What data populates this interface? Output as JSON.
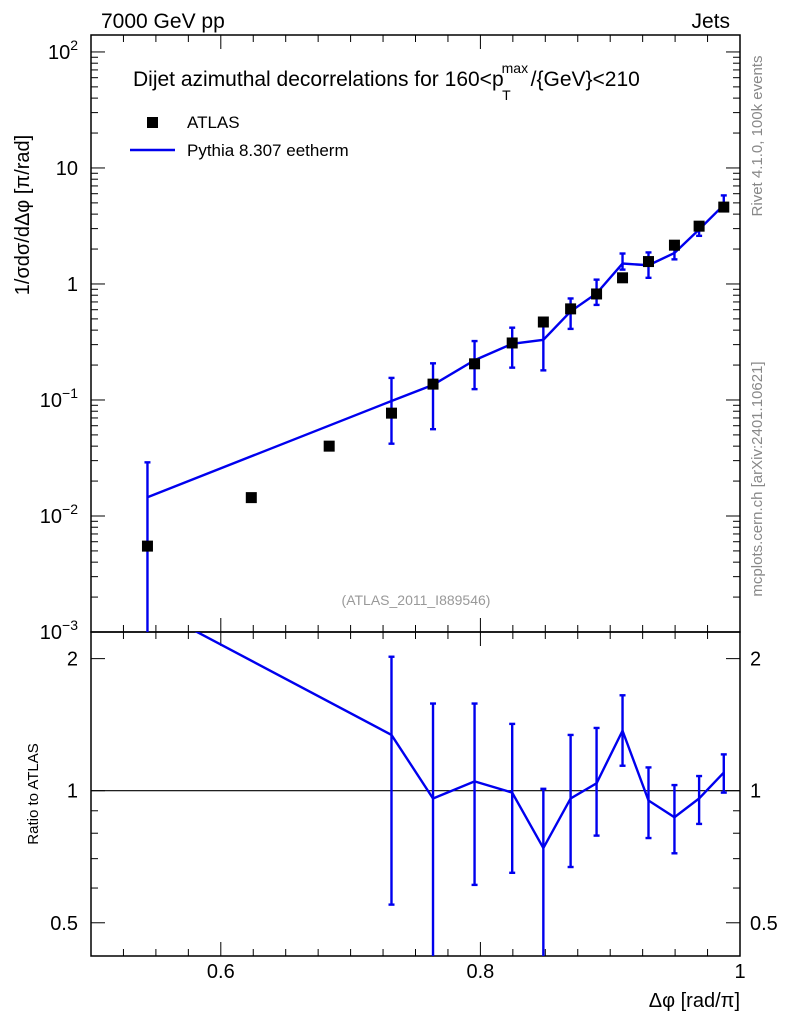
{
  "header": {
    "left": "7000 GeV pp",
    "right": "Jets"
  },
  "side_labels": {
    "rivet": "Rivet 4.1.0,  100k events",
    "mcplots": "mcplots.cern.ch [arXiv:2401.10621]"
  },
  "colors": {
    "mc": "#0000ee",
    "data": "#000000",
    "watermark": "#999999",
    "side": "#888888"
  },
  "chart_data": {
    "type": "scatter",
    "title": "Dijet azimuthal decorrelations for 160<p_T^max/{GeV}<210",
    "title_parts": {
      "pre": "Dijet azimuthal decorrelations for 160<p",
      "sup": "max",
      "sub": "T",
      "post": "/{GeV}<210"
    },
    "ylabel": "1/σdσ/dΔφ [π/rad]",
    "xlabel": "Δφ [rad/π]",
    "ratio_ylabel": "Ratio to ATLAS",
    "watermark": "(ATLAS_2011_I889546)",
    "xlim": [
      0.5,
      1.0
    ],
    "ylim": [
      0.001,
      140
    ],
    "yscale": "log",
    "ratio_ylim": [
      0.42,
      2.3
    ],
    "x_ticks": [
      "0.6",
      "0.8",
      "1"
    ],
    "x_tick_values": [
      0.6,
      0.8,
      1.0
    ],
    "y_ticks": [
      {
        "value": 0.001,
        "base": "10",
        "exp": "−3"
      },
      {
        "value": 0.01,
        "base": "10",
        "exp": "−2"
      },
      {
        "value": 0.1,
        "base": "10",
        "exp": "−1"
      },
      {
        "value": 1,
        "base": "1",
        "exp": ""
      },
      {
        "value": 10,
        "base": "10",
        "exp": ""
      },
      {
        "value": 100,
        "base": "10",
        "exp": "2"
      }
    ],
    "ratio_ticks": [
      {
        "value": 0.5,
        "label": "0.5"
      },
      {
        "value": 1,
        "label": "1"
      },
      {
        "value": 2,
        "label": "2"
      }
    ],
    "legend": {
      "data": "ATLAS",
      "mc": "Pythia 8.307 eetherm"
    },
    "series": [
      {
        "name": "ATLAS",
        "kind": "points",
        "x": [
          0.5435,
          0.6235,
          0.6835,
          0.7315,
          0.7635,
          0.7955,
          0.8245,
          0.8485,
          0.8695,
          0.8895,
          0.9095,
          0.9295,
          0.9495,
          0.9685,
          0.9875
        ],
        "y": [
          0.0055,
          0.0144,
          0.04,
          0.077,
          0.137,
          0.205,
          0.31,
          0.47,
          0.61,
          0.82,
          1.13,
          1.56,
          2.16,
          3.15,
          4.6
        ]
      },
      {
        "name": "Pythia 8.307 eetherm",
        "kind": "line",
        "x": [
          0.5435,
          0.7315,
          0.7635,
          0.7955,
          0.8245,
          0.8485,
          0.8695,
          0.8895,
          0.9095,
          0.9295,
          0.9495,
          0.9685,
          0.9875
        ],
        "y": [
          0.0145,
          0.098,
          0.135,
          0.22,
          0.305,
          0.33,
          0.58,
          0.83,
          1.5,
          1.45,
          1.85,
          2.95,
          4.8
        ],
        "yerr_lo": [
          0.0145,
          0.056,
          0.079,
          0.096,
          0.115,
          0.15,
          0.17,
          0.17,
          0.17,
          0.32,
          0.22,
          0.35,
          0.45
        ],
        "yerr_hi": [
          0.0145,
          0.057,
          0.072,
          0.102,
          0.115,
          0.15,
          0.17,
          0.26,
          0.33,
          0.42,
          0.38,
          0.35,
          1.0
        ]
      }
    ],
    "ratio": {
      "x": [
        0.5435,
        0.7315,
        0.7635,
        0.7955,
        0.8245,
        0.8485,
        0.8695,
        0.8895,
        0.9095,
        0.9295,
        0.9495,
        0.9685,
        0.9875
      ],
      "y": [
        2.64,
        1.34,
        0.96,
        1.05,
        0.99,
        0.74,
        0.96,
        1.04,
        1.37,
        0.95,
        0.87,
        0.96,
        1.1
      ],
      "yerr_lo": [
        0,
        0.79,
        0.72,
        0.44,
        0.34,
        0.41,
        0.29,
        0.25,
        0.23,
        0.17,
        0.15,
        0.12,
        0.11
      ],
      "yerr_hi": [
        0,
        0.68,
        0.62,
        0.53,
        0.43,
        0.27,
        0.38,
        0.35,
        0.28,
        0.18,
        0.16,
        0.12,
        0.11
      ]
    }
  }
}
